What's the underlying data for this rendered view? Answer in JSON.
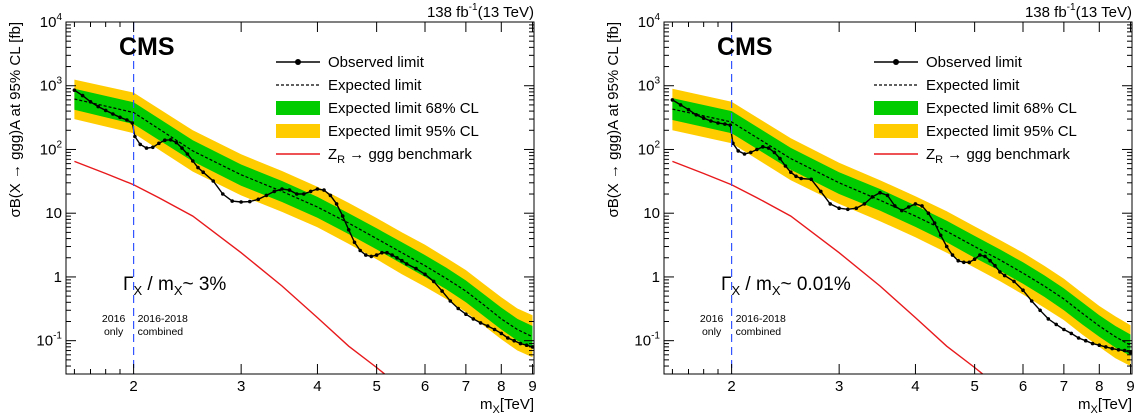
{
  "chart_data": [
    {
      "type": "line",
      "lumi_label": "138 fb",
      "lumi_sup": "-1",
      "lumi_energy": "(13 TeV)",
      "experiment": "CMS",
      "xlabel": "m",
      "xlabel_sub": "X",
      "xlabel_unit": "[TeV]",
      "ylabel": "σB(X → ggg)A at 95% CL [fb]",
      "xscale": "log",
      "yscale": "log",
      "xlim": [
        1.55,
        9.05
      ],
      "ylim": [
        0.03,
        10000
      ],
      "x_ticks": [
        "2",
        "3",
        "4",
        "5",
        "6",
        "7",
        "8",
        "9"
      ],
      "width_label": "Γ",
      "width_sub": "X",
      "width_mid": " / m",
      "width_sub2": "X",
      "width_value": "~ 3%",
      "era_divider_x": 2.0,
      "era_left": [
        "2016",
        "only"
      ],
      "era_right": [
        "2016-2018",
        "combined"
      ],
      "legend": [
        {
          "label": "Observed limit",
          "style": "observed"
        },
        {
          "label": "Expected limit",
          "style": "expected"
        },
        {
          "label": "Expected limit 68% CL",
          "style": "band68"
        },
        {
          "label": "Expected limit 95% CL",
          "style": "band95"
        },
        {
          "label": "Z",
          "sub": "R",
          "suffix": " → ggg benchmark",
          "style": "benchmark"
        }
      ],
      "series": [
        {
          "name": "Observed limit",
          "x": [
            1.6,
            1.65,
            1.7,
            1.75,
            1.8,
            1.85,
            1.9,
            1.95,
            1.99,
            2.01,
            2.05,
            2.1,
            2.15,
            2.2,
            2.25,
            2.3,
            2.35,
            2.4,
            2.45,
            2.5,
            2.55,
            2.6,
            2.7,
            2.8,
            2.9,
            3.0,
            3.1,
            3.2,
            3.3,
            3.4,
            3.5,
            3.6,
            3.7,
            3.8,
            3.9,
            4.0,
            4.1,
            4.2,
            4.3,
            4.4,
            4.5,
            4.6,
            4.7,
            4.8,
            4.9,
            5.0,
            5.1,
            5.2,
            5.3,
            5.4,
            5.5,
            5.6,
            5.8,
            6.0,
            6.2,
            6.4,
            6.6,
            6.8,
            7.0,
            7.2,
            7.4,
            7.6,
            7.8,
            8.0,
            8.2,
            8.4,
            8.6,
            8.8,
            9.0
          ],
          "values": [
            850,
            700,
            560,
            470,
            410,
            360,
            320,
            290,
            260,
            160,
            120,
            105,
            108,
            125,
            140,
            142,
            128,
            105,
            85,
            66,
            52,
            44,
            32,
            20,
            15.5,
            15,
            15.2,
            16.5,
            19,
            22,
            24,
            23,
            20,
            20,
            22,
            24,
            23,
            19,
            14,
            9,
            5.5,
            3.5,
            2.6,
            2.2,
            2.1,
            2.2,
            2.4,
            2.4,
            2.2,
            2.0,
            1.8,
            1.6,
            1.35,
            1.1,
            0.85,
            0.6,
            0.42,
            0.32,
            0.26,
            0.22,
            0.19,
            0.17,
            0.15,
            0.13,
            0.11,
            0.1,
            0.09,
            0.085,
            0.08
          ]
        },
        {
          "name": "Expected limit",
          "x": [
            1.6,
            2.0,
            2.5,
            3.0,
            3.5,
            4.0,
            4.5,
            5.0,
            5.5,
            6.0,
            6.5,
            7.0,
            7.5,
            8.0,
            8.5,
            9.0
          ],
          "values": [
            620,
            380,
            95,
            40,
            22,
            12.5,
            7,
            4,
            2.4,
            1.5,
            0.95,
            0.6,
            0.36,
            0.22,
            0.15,
            0.115
          ]
        },
        {
          "name": "Expected limit 68% CL",
          "x": [
            1.6,
            2.0,
            2.5,
            3.0,
            3.5,
            4.0,
            4.5,
            5.0,
            5.5,
            6.0,
            6.5,
            7.0,
            7.5,
            8.0,
            8.5,
            9.0
          ],
          "low": [
            420,
            250,
            65,
            27,
            15,
            8.5,
            4.7,
            2.7,
            1.6,
            1.0,
            0.64,
            0.4,
            0.24,
            0.15,
            0.1,
            0.078
          ],
          "high": [
            900,
            550,
            140,
            58,
            32,
            18,
            10,
            5.8,
            3.5,
            2.2,
            1.4,
            0.88,
            0.53,
            0.33,
            0.22,
            0.17
          ]
        },
        {
          "name": "Expected limit 95% CL",
          "x": [
            1.6,
            2.0,
            2.5,
            3.0,
            3.5,
            4.0,
            4.5,
            5.0,
            5.5,
            6.0,
            6.5,
            7.0,
            7.5,
            8.0,
            8.5,
            9.0
          ],
          "low": [
            300,
            180,
            45,
            19,
            10.5,
            6.0,
            3.3,
            1.9,
            1.1,
            0.7,
            0.45,
            0.28,
            0.17,
            0.105,
            0.07,
            0.055
          ],
          "high": [
            1250,
            780,
            200,
            84,
            46,
            26,
            14.5,
            8.4,
            5.0,
            3.2,
            2.0,
            1.28,
            0.77,
            0.48,
            0.32,
            0.25
          ]
        },
        {
          "name": "Z_R → ggg benchmark",
          "x": [
            1.6,
            1.8,
            2.0,
            2.2,
            2.5,
            3.0,
            3.5,
            4.0,
            4.5,
            5.0,
            5.2
          ],
          "values": [
            65,
            42,
            28,
            17.5,
            9,
            2.4,
            0.72,
            0.23,
            0.082,
            0.038,
            0.028
          ]
        }
      ]
    },
    {
      "type": "line",
      "lumi_label": "138 fb",
      "lumi_sup": "-1",
      "lumi_energy": "(13 TeV)",
      "experiment": "CMS",
      "xlabel": "m",
      "xlabel_sub": "X",
      "xlabel_unit": "[TeV]",
      "ylabel": "σB(X → ggg)A at 95% CL [fb]",
      "xscale": "log",
      "yscale": "log",
      "xlim": [
        1.55,
        9.05
      ],
      "ylim": [
        0.03,
        10000
      ],
      "x_ticks": [
        "2",
        "3",
        "4",
        "5",
        "6",
        "7",
        "8",
        "9"
      ],
      "width_label": "Γ",
      "width_sub": "X",
      "width_mid": " / m",
      "width_sub2": "X",
      "width_value": "~ 0.01%",
      "era_divider_x": 2.0,
      "era_left": [
        "2016",
        "only"
      ],
      "era_right": [
        "2016-2018",
        "combined"
      ],
      "legend": [
        {
          "label": "Observed limit",
          "style": "observed"
        },
        {
          "label": "Expected limit",
          "style": "expected"
        },
        {
          "label": "Expected limit 68% CL",
          "style": "band68"
        },
        {
          "label": "Expected limit 95% CL",
          "style": "band95"
        },
        {
          "label": "Z",
          "sub": "R",
          "suffix": " → ggg benchmark",
          "style": "benchmark"
        }
      ],
      "series": [
        {
          "name": "Observed limit",
          "x": [
            1.6,
            1.65,
            1.7,
            1.75,
            1.8,
            1.85,
            1.9,
            1.95,
            1.99,
            2.01,
            2.05,
            2.1,
            2.15,
            2.2,
            2.25,
            2.3,
            2.35,
            2.4,
            2.45,
            2.5,
            2.55,
            2.6,
            2.7,
            2.8,
            2.9,
            3.0,
            3.1,
            3.2,
            3.3,
            3.4,
            3.5,
            3.6,
            3.7,
            3.8,
            3.9,
            4.0,
            4.1,
            4.2,
            4.3,
            4.4,
            4.5,
            4.6,
            4.7,
            4.8,
            4.9,
            5.0,
            5.1,
            5.2,
            5.3,
            5.4,
            5.5,
            5.6,
            5.8,
            6.0,
            6.2,
            6.4,
            6.6,
            6.8,
            7.0,
            7.2,
            7.4,
            7.6,
            7.8,
            8.0,
            8.2,
            8.4,
            8.6,
            8.8,
            9.0
          ],
          "values": [
            600,
            500,
            420,
            350,
            310,
            280,
            260,
            250,
            240,
            125,
            95,
            85,
            90,
            100,
            110,
            105,
            90,
            72,
            55,
            44,
            38,
            35,
            34,
            22,
            14,
            12,
            11.5,
            12,
            14,
            18,
            21,
            19,
            13,
            11,
            12.5,
            14,
            13,
            10,
            7,
            4.5,
            3.0,
            2.2,
            1.8,
            1.7,
            1.7,
            1.9,
            2.2,
            2.1,
            1.8,
            1.5,
            1.2,
            1.05,
            0.85,
            0.62,
            0.42,
            0.3,
            0.22,
            0.18,
            0.15,
            0.13,
            0.11,
            0.1,
            0.09,
            0.085,
            0.08,
            0.075,
            0.072,
            0.07,
            0.065
          ]
        },
        {
          "name": "Expected limit",
          "x": [
            1.6,
            2.0,
            2.5,
            3.0,
            3.5,
            4.0,
            4.5,
            5.0,
            5.5,
            6.0,
            6.5,
            7.0,
            7.5,
            8.0,
            8.5,
            9.0
          ],
          "values": [
            430,
            270,
            72,
            30,
            16,
            9,
            5.2,
            3.0,
            1.85,
            1.15,
            0.72,
            0.45,
            0.27,
            0.17,
            0.115,
            0.085
          ]
        },
        {
          "name": "Expected limit 68% CL",
          "x": [
            1.6,
            2.0,
            2.5,
            3.0,
            3.5,
            4.0,
            4.5,
            5.0,
            5.5,
            6.0,
            6.5,
            7.0,
            7.5,
            8.0,
            8.5,
            9.0
          ],
          "low": [
            290,
            180,
            48,
            20,
            11,
            6.1,
            3.5,
            2.0,
            1.25,
            0.78,
            0.49,
            0.3,
            0.18,
            0.115,
            0.078,
            0.058
          ],
          "high": [
            640,
            400,
            106,
            44,
            24,
            13.2,
            7.6,
            4.4,
            2.7,
            1.7,
            1.06,
            0.66,
            0.4,
            0.25,
            0.17,
            0.125
          ]
        },
        {
          "name": "Expected limit 95% CL",
          "x": [
            1.6,
            2.0,
            2.5,
            3.0,
            3.5,
            4.0,
            4.5,
            5.0,
            5.5,
            6.0,
            6.5,
            7.0,
            7.5,
            8.0,
            8.5,
            9.0
          ],
          "low": [
            200,
            125,
            33,
            14,
            7.5,
            4.2,
            2.4,
            1.4,
            0.86,
            0.53,
            0.33,
            0.21,
            0.125,
            0.08,
            0.053,
            0.04
          ],
          "high": [
            900,
            560,
            150,
            62,
            33,
            18.5,
            10.7,
            6.2,
            3.8,
            2.4,
            1.5,
            0.94,
            0.56,
            0.35,
            0.24,
            0.175
          ]
        },
        {
          "name": "Z_R → ggg benchmark",
          "x": [
            1.6,
            1.8,
            2.0,
            2.2,
            2.5,
            3.0,
            3.5,
            4.0,
            4.5,
            5.0,
            5.2
          ],
          "values": [
            65,
            42,
            28,
            17.5,
            9,
            2.4,
            0.72,
            0.23,
            0.082,
            0.038,
            0.028
          ]
        }
      ]
    }
  ]
}
